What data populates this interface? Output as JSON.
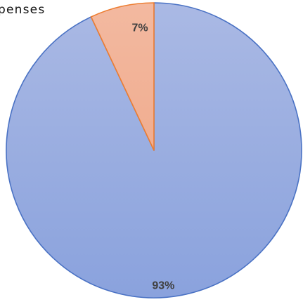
{
  "header": {
    "text": "penses"
  },
  "chart_data": {
    "type": "pie",
    "categories": [
      "",
      ""
    ],
    "values": [
      93,
      7
    ],
    "data_labels": [
      "93%",
      "7%"
    ],
    "colors": {
      "slice_1_top": "#aab9e4",
      "slice_1_bottom": "#8aa2dd",
      "slice_1_stroke": "#4a72c4",
      "slice_2_top": "#f3b9a0",
      "slice_2_bottom": "#f0ad90",
      "slice_2_stroke": "#ed7d31",
      "label": "#404040"
    }
  }
}
